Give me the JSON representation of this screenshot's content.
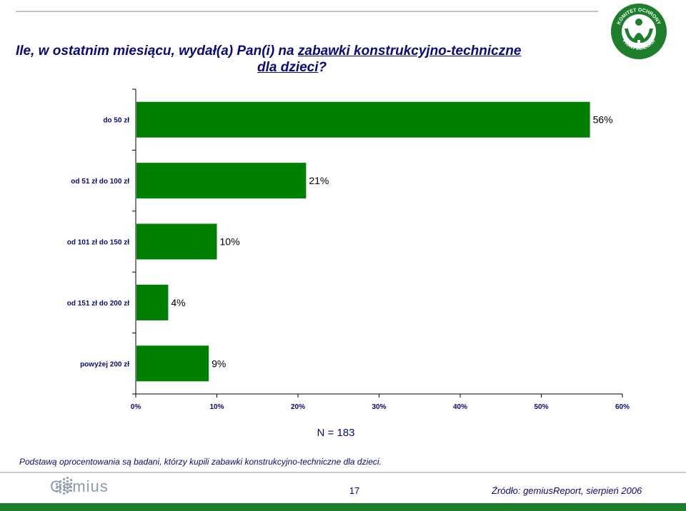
{
  "title": {
    "line1_prefix": "Ile, w ostatnim miesiącu, wydał(a) Pan(i) na ",
    "line1_emph": "zabawki konstrukcyjno-techniczne",
    "line2_emph": "dla dzieci",
    "line2_suffix": "?"
  },
  "logo": {
    "top_text": "KOMITET OCHRONY",
    "bottom_text": "PRAW DZIECKA",
    "color": "#1d7f2b"
  },
  "chart_data": {
    "type": "bar",
    "orientation": "horizontal",
    "categories": [
      "do 50 zł",
      "od 51 zł do 100 zł",
      "od 101 zł do 150 zł",
      "od 151 zł do 200 zł",
      "powyżej 200 zł"
    ],
    "values": [
      56,
      21,
      10,
      4,
      9
    ],
    "value_labels": [
      "56%",
      "21%",
      "10%",
      "4%",
      "9%"
    ],
    "xlim": [
      0,
      60
    ],
    "xticks": [
      0,
      10,
      20,
      30,
      40,
      50,
      60
    ],
    "xtick_labels": [
      "0%",
      "10%",
      "20%",
      "30%",
      "40%",
      "50%",
      "60%"
    ],
    "bar_color": "#008000",
    "grid": false,
    "legend": "none"
  },
  "sample": "N = 183",
  "footnote": "Podstawą oprocentowania są badani, którzy kupili zabawki konstrukcyjno-techniczne dla dzieci.",
  "footer": {
    "brand": "Gemius",
    "page_number": "17",
    "source": "Źródło: gemiusReport, sierpień 2006",
    "accent_color": "#1d7f2b"
  }
}
